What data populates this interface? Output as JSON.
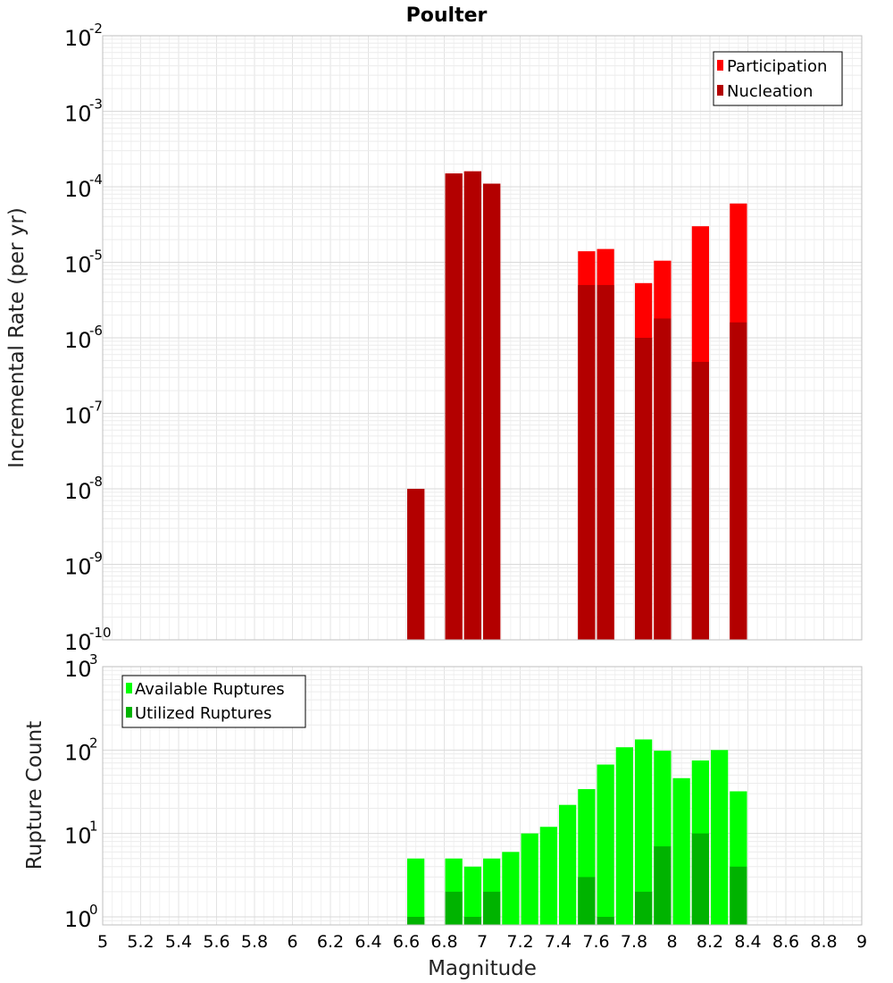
{
  "chart_data": [
    {
      "type": "bar",
      "title": "Poulter",
      "ylabel": "Incremental Rate (per yr)",
      "xlabel": "",
      "yscale": "log",
      "ylim": [
        1e-10,
        0.01
      ],
      "xlim": [
        5,
        9
      ],
      "grid": true,
      "legend_position": "top-right",
      "bar_mode": "overlay",
      "y_ticks": [
        {
          "base": "10",
          "exp": "-10"
        },
        {
          "base": "10",
          "exp": "-9"
        },
        {
          "base": "10",
          "exp": "-8"
        },
        {
          "base": "10",
          "exp": "-7"
        },
        {
          "base": "10",
          "exp": "-6"
        },
        {
          "base": "10",
          "exp": "-5"
        },
        {
          "base": "10",
          "exp": "-4"
        },
        {
          "base": "10",
          "exp": "-3"
        },
        {
          "base": "10",
          "exp": "-2"
        }
      ],
      "series": [
        {
          "name": "Participation",
          "color": "#ff0000",
          "x": [
            6.65,
            6.85,
            6.95,
            7.05,
            7.55,
            7.65,
            7.85,
            7.95,
            8.15,
            8.35
          ],
          "values": [
            1e-08,
            0.00015,
            0.00016,
            0.00011,
            1.4e-05,
            1.5e-05,
            5.3e-06,
            1.05e-05,
            3e-05,
            6e-05
          ]
        },
        {
          "name": "Nucleation",
          "color": "#b30000",
          "x": [
            6.65,
            6.85,
            6.95,
            7.05,
            7.55,
            7.65,
            7.85,
            7.95,
            8.15,
            8.35
          ],
          "values": [
            1e-08,
            0.00015,
            0.00016,
            0.00011,
            5e-06,
            5e-06,
            1e-06,
            1.8e-06,
            4.8e-07,
            1.6e-06
          ]
        }
      ]
    },
    {
      "type": "bar",
      "title": "",
      "ylabel": "Rupture Count",
      "xlabel": "Magnitude",
      "yscale": "log",
      "ylim": [
        0.8,
        1000
      ],
      "xlim": [
        5,
        9
      ],
      "grid": true,
      "legend_position": "top-left",
      "bar_mode": "overlay",
      "y_ticks": [
        {
          "base": "10",
          "exp": "0"
        },
        {
          "base": "10",
          "exp": "1"
        },
        {
          "base": "10",
          "exp": "2"
        },
        {
          "base": "10",
          "exp": "3"
        }
      ],
      "x_ticks": [
        "5",
        "5.2",
        "5.4",
        "5.6",
        "5.8",
        "6",
        "6.2",
        "6.4",
        "6.6",
        "6.8",
        "7",
        "7.2",
        "7.4",
        "7.6",
        "7.8",
        "8",
        "8.2",
        "8.4",
        "8.6",
        "8.8",
        "9"
      ],
      "series": [
        {
          "name": "Available Ruptures",
          "color": "#00ff00",
          "x": [
            6.65,
            6.85,
            6.95,
            7.05,
            7.15,
            7.25,
            7.35,
            7.45,
            7.55,
            7.65,
            7.75,
            7.85,
            7.95,
            8.05,
            8.15,
            8.25,
            8.35
          ],
          "values": [
            5,
            5,
            4,
            5,
            6,
            10,
            12,
            22,
            34,
            67,
            108,
            134,
            98,
            46,
            75,
            100,
            32
          ]
        },
        {
          "name": "Utilized Ruptures",
          "color": "#00b300",
          "x": [
            6.65,
            6.85,
            6.95,
            7.05,
            7.55,
            7.65,
            7.85,
            7.95,
            8.15,
            8.35
          ],
          "values": [
            1,
            2,
            1,
            2,
            3,
            1,
            2,
            7,
            10,
            4
          ]
        }
      ]
    }
  ]
}
